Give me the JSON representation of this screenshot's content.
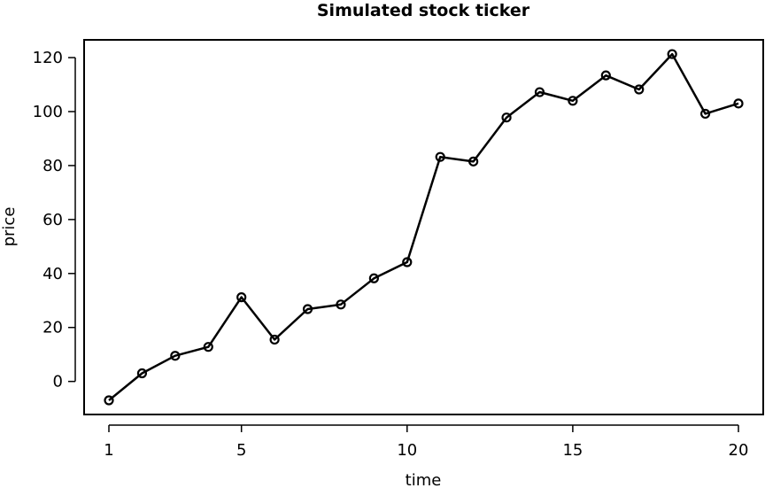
{
  "chart_data": {
    "type": "line",
    "title": "Simulated stock ticker",
    "xlabel": "time",
    "ylabel": "price",
    "xlim": [
      1,
      20
    ],
    "ylim": [
      -7,
      121
    ],
    "x_ticks": [
      1,
      5,
      10,
      15,
      20
    ],
    "y_ticks": [
      0,
      20,
      40,
      60,
      80,
      100,
      120
    ],
    "grid": false,
    "markers": "open-circle",
    "series": [
      {
        "x": [
          1,
          2,
          3,
          4,
          5,
          6,
          7,
          8,
          9,
          10,
          11,
          12,
          13,
          14,
          15,
          16,
          17,
          18,
          19,
          20
        ],
        "values": [
          -7,
          3,
          9.5,
          12.8,
          31.2,
          15.5,
          26.8,
          28.5,
          38.2,
          44.2,
          83.2,
          81.5,
          97.8,
          107.2,
          104,
          113.4,
          108.2,
          121.3,
          99.2,
          103
        ]
      }
    ]
  }
}
